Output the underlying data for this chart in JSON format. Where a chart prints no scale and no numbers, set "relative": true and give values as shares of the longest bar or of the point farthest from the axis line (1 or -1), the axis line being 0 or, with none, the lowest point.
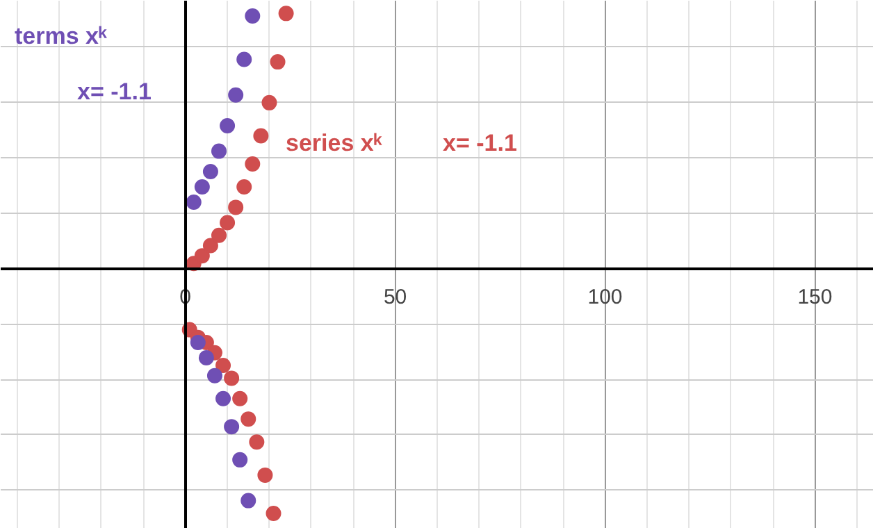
{
  "chart_data": {
    "type": "scatter",
    "relative": true,
    "marker": "circle",
    "grid": true,
    "xlim": [
      -44,
      164
    ],
    "xticks": [
      0,
      50,
      100,
      150
    ],
    "series": [
      {
        "name": "terms xᵏ",
        "color": "#6f4fb4",
        "x": [
          2,
          3,
          4,
          5,
          6,
          7,
          8,
          9,
          10,
          11,
          12,
          13,
          14,
          15,
          16
        ],
        "values": [
          0.26,
          -0.29,
          0.32,
          -0.35,
          0.38,
          -0.42,
          0.46,
          -0.51,
          0.56,
          -0.62,
          0.68,
          -0.75,
          0.82,
          -0.91,
          0.99
        ]
      },
      {
        "name": "series xᵏ",
        "color": "#d04e4e",
        "x": [
          1,
          2,
          3,
          4,
          5,
          6,
          7,
          8,
          9,
          10,
          11,
          12,
          13,
          14,
          15,
          16,
          17,
          18,
          19,
          20,
          21,
          22,
          24
        ],
        "values": [
          -0.24,
          0.02,
          -0.27,
          0.05,
          -0.29,
          0.09,
          -0.33,
          0.13,
          -0.38,
          0.18,
          -0.43,
          0.24,
          -0.51,
          0.32,
          -0.59,
          0.41,
          -0.68,
          0.52,
          -0.81,
          0.65,
          -0.96,
          0.81,
          1
        ]
      }
    ],
    "annotations": [
      "x= -1.1",
      "x= -1.1"
    ]
  }
}
